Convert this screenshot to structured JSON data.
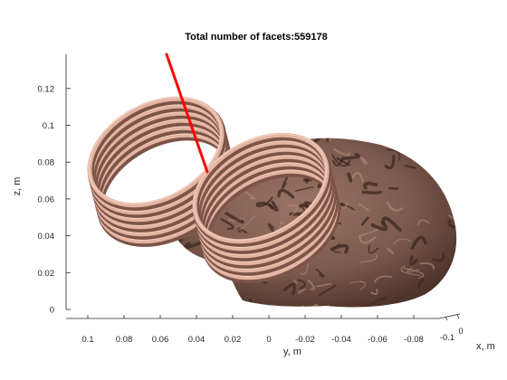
{
  "chart_data": {
    "type": "surface3d",
    "title": "Total number of facets:559178",
    "xlabel": "x, m",
    "ylabel": "y, m",
    "zlabel": "z, m",
    "z_ticks": [
      0,
      0.02,
      0.04,
      0.06,
      0.08,
      0.1,
      0.12
    ],
    "z_tick_labels": [
      "0",
      "0.02",
      "0.04",
      "0.06",
      "0.08",
      "0.1",
      "0.12"
    ],
    "y_ticks": [
      0.1,
      0.08,
      0.06,
      0.04,
      0.02,
      0,
      -0.02,
      -0.04,
      -0.06,
      -0.08
    ],
    "y_tick_labels": [
      "0.1",
      "0.08",
      "0.06",
      "0.04",
      "0.02",
      "0",
      "-0.02",
      "-0.04",
      "-0.06",
      "-0.08"
    ],
    "x_ticks": [
      -0.1,
      0
    ],
    "x_tick_labels": [
      "-0.1",
      "0"
    ],
    "grid": false,
    "objects": [
      {
        "name": "coil-1",
        "kind": "stacked rings",
        "turns": 6,
        "color": "#e3b4a2"
      },
      {
        "name": "coil-2",
        "kind": "stacked rings",
        "turns": 6,
        "color": "#e3b4a2"
      },
      {
        "name": "brain",
        "kind": "cortical surface",
        "color": "#7d5a4e"
      },
      {
        "name": "direction-line",
        "kind": "line",
        "color": "#ff0000"
      }
    ]
  }
}
